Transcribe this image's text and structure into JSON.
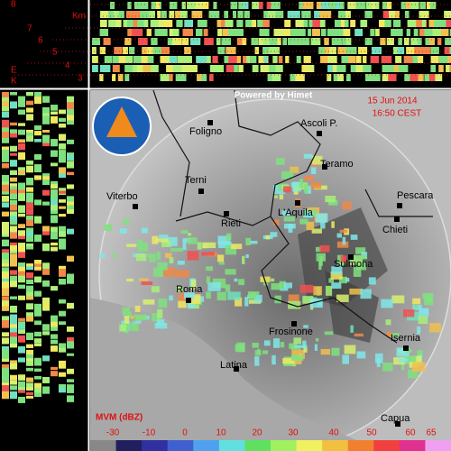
{
  "header": {
    "credit": "Powered by Himet",
    "date": "15 Jun 2014",
    "time": "16:50 CEST"
  },
  "height_panel": {
    "unit": "Km",
    "labels": [
      "8",
      "7",
      "6",
      "5",
      "4",
      "3"
    ],
    "side_labels": [
      "E",
      "K"
    ]
  },
  "cities": [
    {
      "label": "Foligno"
    },
    {
      "label": "Ascoli P."
    },
    {
      "label": "Teramo"
    },
    {
      "label": "Terni"
    },
    {
      "label": "Viterbo"
    },
    {
      "label": "Pescara"
    },
    {
      "label": "L'Aquila"
    },
    {
      "label": "Rieti"
    },
    {
      "label": "Chieti"
    },
    {
      "label": "Sulmona"
    },
    {
      "label": "Roma"
    },
    {
      "label": "Frosinone"
    },
    {
      "label": "Isernia"
    },
    {
      "label": "Latina"
    },
    {
      "label": "Capua"
    }
  ],
  "legend": {
    "title": "MVM (dBZ)",
    "ticks": [
      -30,
      -10,
      0,
      10,
      20,
      30,
      40,
      50,
      60,
      65
    ]
  }
}
